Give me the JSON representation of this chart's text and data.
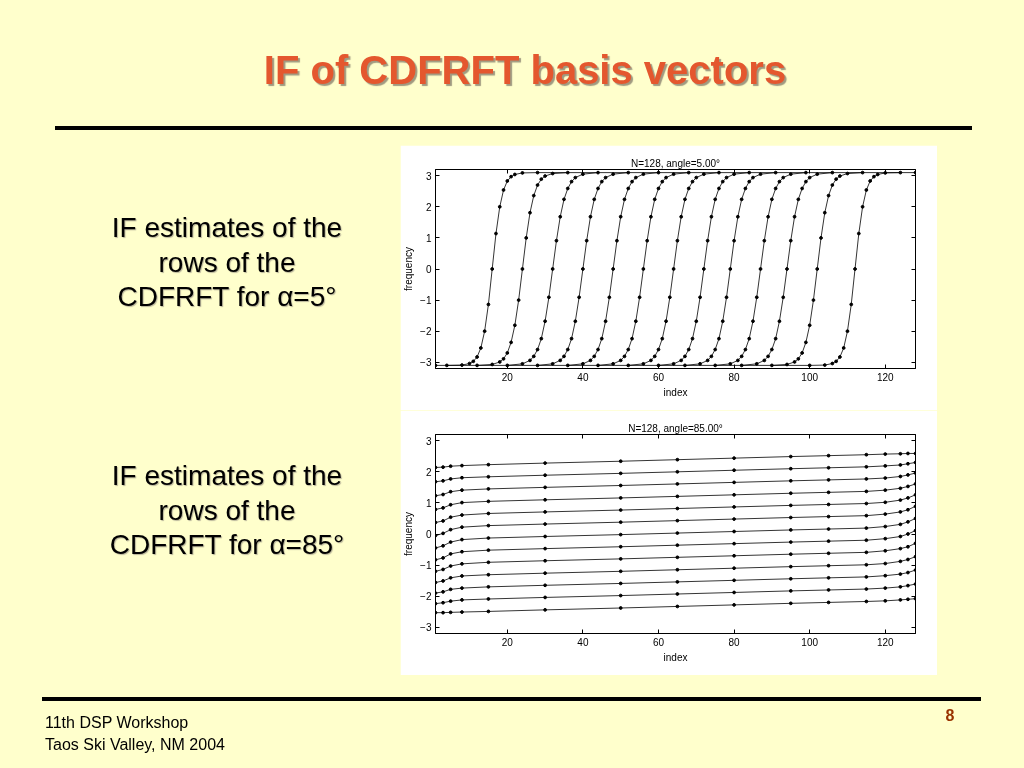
{
  "chart_data": [
    {
      "type": "line",
      "title": "N=128, angle=5.00°",
      "xlabel": "index",
      "ylabel": "frequency",
      "xlim": [
        1,
        128
      ],
      "ylim": [
        -3.2,
        3.2
      ],
      "xticks": [
        20,
        40,
        60,
        80,
        100,
        120
      ],
      "yticks": [
        -3,
        -2,
        -1,
        0,
        1,
        2,
        3
      ],
      "grid": false,
      "marker": "circle",
      "line_style": "solid",
      "annotations": [
        "IF of CDFRFT basis vectors",
        "IF estimates of the rows of the CDFRFT for α=5°",
        "11th DSP Workshop",
        "Taos Ski Valley, NM 2004",
        "8"
      ],
      "series": [
        {
          "color": "#000000",
          "x": [
            4,
            8,
            10,
            11,
            12,
            13,
            14,
            15,
            16,
            17,
            18,
            19,
            20,
            21,
            22,
            24,
            28,
            128
          ],
          "values": [
            -3.1,
            -3.09,
            -3.04,
            -2.97,
            -2.83,
            -2.54,
            -2.0,
            -1.14,
            0,
            1.14,
            2.0,
            2.54,
            2.83,
            2.97,
            3.04,
            3.09,
            3.1,
            3.1
          ]
        },
        {
          "color": "#000000",
          "x": [
            12,
            16,
            18,
            19,
            20,
            21,
            22,
            23,
            24,
            25,
            26,
            27,
            28,
            29,
            30,
            32,
            36
          ],
          "values": [
            -3.1,
            -3.07,
            -2.99,
            -2.89,
            -2.7,
            -2.36,
            -1.81,
            -1.0,
            0,
            1.0,
            1.81,
            2.36,
            2.7,
            2.89,
            2.99,
            3.07,
            3.1
          ]
        },
        {
          "color": "#000000",
          "x": [
            20,
            24,
            26,
            27,
            28,
            29,
            30,
            31,
            32,
            33,
            34,
            35,
            36,
            37,
            38,
            40,
            44
          ],
          "values": [
            -3.1,
            -3.05,
            -2.94,
            -2.81,
            -2.59,
            -2.24,
            -1.68,
            -0.91,
            0,
            0.91,
            1.68,
            2.24,
            2.59,
            2.81,
            2.94,
            3.05,
            3.1
          ]
        },
        {
          "color": "#000000",
          "x": [
            28,
            32,
            34,
            35,
            36,
            37,
            38,
            39,
            40,
            41,
            42,
            43,
            44,
            45,
            46,
            48,
            52
          ],
          "values": [
            -3.1,
            -3.05,
            -2.94,
            -2.81,
            -2.59,
            -2.24,
            -1.68,
            -0.91,
            0,
            0.91,
            1.68,
            2.24,
            2.59,
            2.81,
            2.94,
            3.05,
            3.1
          ]
        },
        {
          "color": "#000000",
          "x": [
            36,
            40,
            42,
            43,
            44,
            45,
            46,
            47,
            48,
            49,
            50,
            51,
            52,
            53,
            54,
            56,
            60
          ],
          "values": [
            -3.1,
            -3.05,
            -2.94,
            -2.81,
            -2.59,
            -2.24,
            -1.68,
            -0.91,
            0,
            0.91,
            1.68,
            2.24,
            2.59,
            2.81,
            2.94,
            3.05,
            3.1
          ]
        },
        {
          "color": "#000000",
          "x": [
            44,
            48,
            50,
            51,
            52,
            53,
            54,
            55,
            56,
            57,
            58,
            59,
            60,
            61,
            62,
            64,
            68
          ],
          "values": [
            -3.1,
            -3.05,
            -2.94,
            -2.81,
            -2.59,
            -2.24,
            -1.68,
            -0.91,
            0,
            0.91,
            1.68,
            2.24,
            2.59,
            2.81,
            2.94,
            3.05,
            3.1
          ]
        },
        {
          "color": "#000000",
          "x": [
            52,
            56,
            58,
            59,
            60,
            61,
            62,
            63,
            64,
            65,
            66,
            67,
            68,
            69,
            70,
            72,
            76
          ],
          "values": [
            -3.1,
            -3.05,
            -2.94,
            -2.81,
            -2.59,
            -2.24,
            -1.68,
            -0.91,
            0,
            0.91,
            1.68,
            2.24,
            2.59,
            2.81,
            2.94,
            3.05,
            3.1
          ]
        },
        {
          "color": "#000000",
          "x": [
            60,
            64,
            66,
            67,
            68,
            69,
            70,
            71,
            72,
            73,
            74,
            75,
            76,
            77,
            78,
            80,
            84
          ],
          "values": [
            -3.1,
            -3.05,
            -2.94,
            -2.81,
            -2.59,
            -2.24,
            -1.68,
            -0.91,
            0,
            0.91,
            1.68,
            2.24,
            2.59,
            2.81,
            2.94,
            3.05,
            3.1
          ]
        },
        {
          "color": "#000000",
          "x": [
            67,
            71,
            73,
            74,
            75,
            76,
            77,
            78,
            79,
            80,
            81,
            82,
            83,
            84,
            85,
            87,
            91
          ],
          "values": [
            -3.1,
            -3.05,
            -2.94,
            -2.81,
            -2.59,
            -2.24,
            -1.68,
            -0.91,
            0,
            0.91,
            1.68,
            2.24,
            2.59,
            2.81,
            2.94,
            3.05,
            3.1
          ]
        },
        {
          "color": "#000000",
          "x": [
            75,
            79,
            81,
            82,
            83,
            84,
            85,
            86,
            87,
            88,
            89,
            90,
            91,
            92,
            93,
            95,
            99
          ],
          "values": [
            -3.1,
            -3.05,
            -2.94,
            -2.81,
            -2.59,
            -2.24,
            -1.68,
            -0.91,
            0,
            0.91,
            1.68,
            2.24,
            2.59,
            2.81,
            2.94,
            3.05,
            3.1
          ]
        },
        {
          "color": "#000000",
          "x": [
            82,
            86,
            88,
            89,
            90,
            91,
            92,
            93,
            94,
            95,
            96,
            97,
            98,
            99,
            100,
            102,
            106
          ],
          "values": [
            -3.1,
            -3.05,
            -2.94,
            -2.81,
            -2.59,
            -2.24,
            -1.68,
            -0.91,
            0,
            0.91,
            1.68,
            2.24,
            2.59,
            2.81,
            2.94,
            3.05,
            3.1
          ]
        },
        {
          "color": "#000000",
          "x": [
            90,
            94,
            96,
            97,
            98,
            99,
            100,
            101,
            102,
            103,
            104,
            105,
            106,
            107,
            108,
            110,
            114
          ],
          "values": [
            -3.1,
            -3.07,
            -2.99,
            -2.89,
            -2.7,
            -2.36,
            -1.81,
            -1.0,
            0,
            1.0,
            1.81,
            2.36,
            2.7,
            2.89,
            2.99,
            3.07,
            3.1
          ]
        },
        {
          "color": "#000000",
          "x": [
            1,
            100,
            104,
            106,
            107,
            108,
            109,
            110,
            111,
            112,
            113,
            114,
            115,
            116,
            117,
            118,
            120,
            124
          ],
          "values": [
            -3.1,
            -3.1,
            -3.09,
            -3.04,
            -2.97,
            -2.83,
            -2.54,
            -2.0,
            -1.14,
            0,
            1.14,
            2.0,
            2.54,
            2.83,
            2.97,
            3.04,
            3.09,
            3.1
          ]
        }
      ]
    },
    {
      "type": "line",
      "title": "N=128, angle=85.00°",
      "xlabel": "index",
      "ylabel": "frequency",
      "xlim": [
        1,
        128
      ],
      "ylim": [
        -3.2,
        3.2
      ],
      "xticks": [
        20,
        40,
        60,
        80,
        100,
        120
      ],
      "yticks": [
        -3,
        -2,
        -1,
        0,
        1,
        2,
        3
      ],
      "grid": false,
      "marker": "circle",
      "line_style": "solid",
      "annotations": [
        "IF estimates of the rows of the CDFRFT for α=85°"
      ],
      "x": [
        1,
        3,
        5,
        8,
        15,
        30,
        50,
        65,
        80,
        95,
        105,
        115,
        120,
        124,
        126,
        128
      ],
      "series": [
        {
          "color": "#000000",
          "values": [
            2.14,
            2.15,
            2.18,
            2.2,
            2.23,
            2.28,
            2.34,
            2.39,
            2.44,
            2.49,
            2.52,
            2.55,
            2.57,
            2.58,
            2.59,
            2.59
          ]
        },
        {
          "color": "#000000",
          "values": [
            1.68,
            1.71,
            1.77,
            1.81,
            1.84,
            1.89,
            1.95,
            2.0,
            2.05,
            2.1,
            2.13,
            2.16,
            2.19,
            2.22,
            2.26,
            2.3
          ]
        },
        {
          "color": "#000000",
          "values": [
            1.23,
            1.27,
            1.36,
            1.41,
            1.45,
            1.5,
            1.56,
            1.61,
            1.66,
            1.71,
            1.74,
            1.77,
            1.8,
            1.85,
            1.9,
            1.96
          ]
        },
        {
          "color": "#000000",
          "values": [
            0.79,
            0.84,
            0.94,
            1.01,
            1.05,
            1.1,
            1.16,
            1.21,
            1.26,
            1.31,
            1.34,
            1.37,
            1.41,
            1.47,
            1.53,
            1.61
          ]
        },
        {
          "color": "#000000",
          "values": [
            0.37,
            0.42,
            0.54,
            0.61,
            0.66,
            0.71,
            0.77,
            0.82,
            0.87,
            0.92,
            0.95,
            0.98,
            1.02,
            1.09,
            1.16,
            1.26
          ]
        },
        {
          "color": "#000000",
          "values": [
            -0.05,
            0.02,
            0.14,
            0.22,
            0.27,
            0.32,
            0.38,
            0.43,
            0.48,
            0.53,
            0.56,
            0.59,
            0.64,
            0.71,
            0.78,
            0.89
          ]
        },
        {
          "color": "#000000",
          "values": [
            -0.45,
            -0.38,
            -0.26,
            -0.18,
            -0.13,
            -0.08,
            -0.02,
            0.03,
            0.08,
            0.13,
            0.16,
            0.19,
            0.24,
            0.31,
            0.39,
            0.5
          ]
        },
        {
          "color": "#000000",
          "values": [
            -0.83,
            -0.77,
            -0.64,
            -0.57,
            -0.52,
            -0.47,
            -0.41,
            -0.36,
            -0.31,
            -0.26,
            -0.23,
            -0.2,
            -0.15,
            -0.08,
            0.0,
            0.11
          ]
        },
        {
          "color": "#000000",
          "values": [
            -1.2,
            -1.14,
            -1.03,
            -0.96,
            -0.91,
            -0.86,
            -0.8,
            -0.75,
            -0.7,
            -0.65,
            -0.62,
            -0.59,
            -0.54,
            -0.47,
            -0.41,
            -0.3
          ]
        },
        {
          "color": "#000000",
          "values": [
            -1.56,
            -1.51,
            -1.41,
            -1.35,
            -1.31,
            -1.26,
            -1.2,
            -1.15,
            -1.1,
            -1.05,
            -1.02,
            -0.99,
            -0.95,
            -0.88,
            -0.82,
            -0.73
          ]
        },
        {
          "color": "#000000",
          "values": [
            -1.9,
            -1.86,
            -1.78,
            -1.74,
            -1.7,
            -1.65,
            -1.59,
            -1.54,
            -1.49,
            -1.44,
            -1.41,
            -1.38,
            -1.34,
            -1.29,
            -1.24,
            -1.16
          ]
        },
        {
          "color": "#000000",
          "values": [
            -2.24,
            -2.21,
            -2.16,
            -2.12,
            -2.09,
            -2.04,
            -1.98,
            -1.93,
            -1.88,
            -1.83,
            -1.8,
            -1.77,
            -1.74,
            -1.7,
            -1.66,
            -1.61
          ]
        },
        {
          "color": "#000000",
          "values": [
            -2.53,
            -2.53,
            -2.52,
            -2.51,
            -2.49,
            -2.44,
            -2.38,
            -2.33,
            -2.28,
            -2.23,
            -2.2,
            -2.17,
            -2.15,
            -2.12,
            -2.1,
            -2.08
          ]
        }
      ]
    }
  ]
}
